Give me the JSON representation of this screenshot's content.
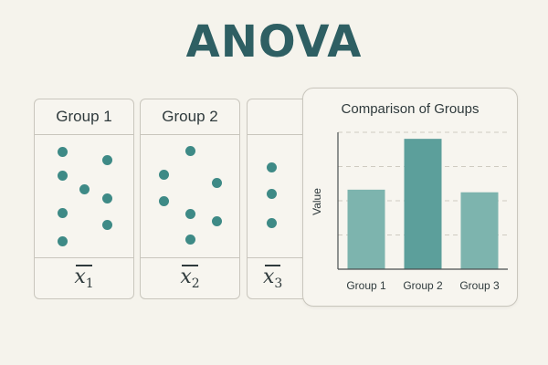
{
  "title": "ANOVA",
  "groups": [
    {
      "label": "Group 1",
      "mean_symbol": "x",
      "mean_subscript": "1"
    },
    {
      "label": "Group 2",
      "mean_symbol": "x",
      "mean_subscript": "2"
    },
    {
      "label": "",
      "mean_symbol": "x",
      "mean_subscript": "3"
    }
  ],
  "chart_data": {
    "type": "bar",
    "title": "Comparison of Groups",
    "ylabel": "Value",
    "xlabel": "",
    "categories": [
      "Group 1",
      "Group 2",
      "Group 3"
    ],
    "values": [
      0.61,
      1.0,
      0.59
    ],
    "ylim": [
      0,
      1.05
    ],
    "grid": true,
    "colors": [
      "#7db4ae",
      "#5c9f9b",
      "#7db4ae"
    ]
  },
  "colors": {
    "accent": "#2e5f63",
    "dot": "#3e8a86",
    "background": "#f5f3ec",
    "border": "#c9c6bd"
  }
}
